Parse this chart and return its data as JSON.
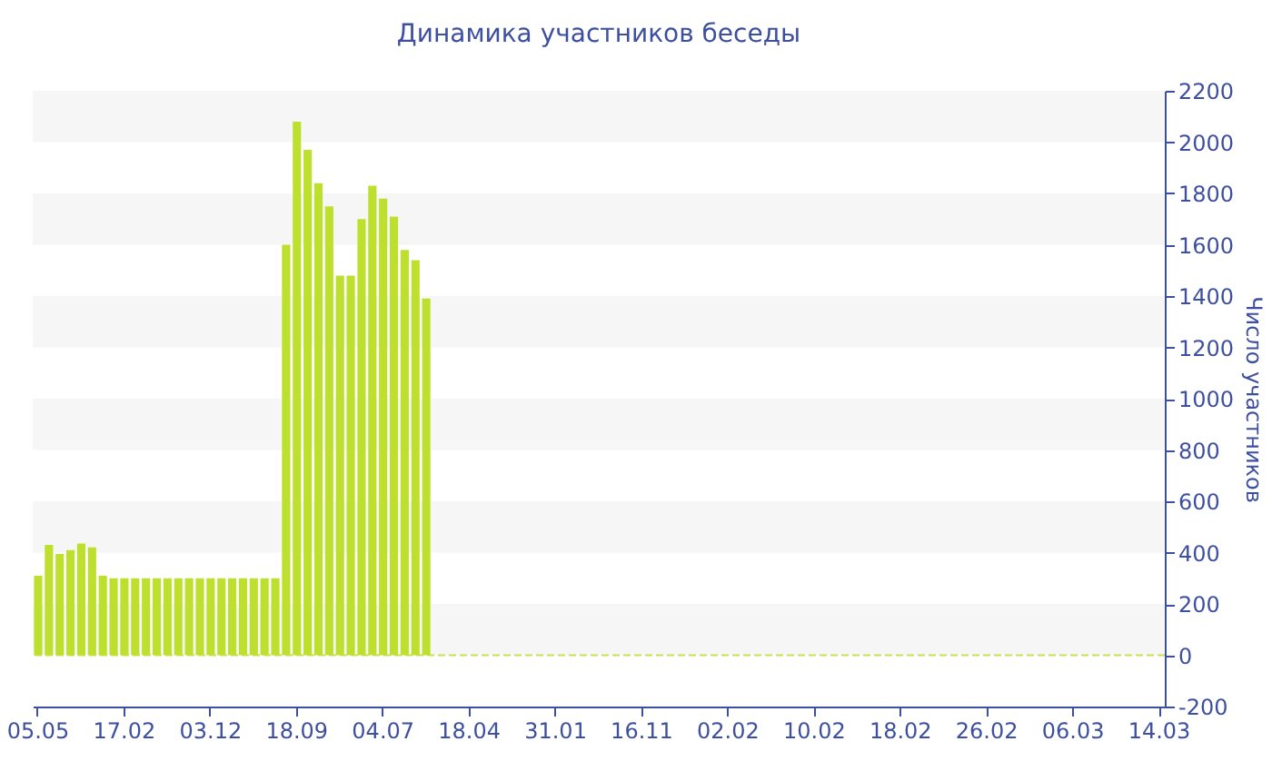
{
  "chart_data": {
    "type": "bar",
    "title": "Динамика участников беседы",
    "ylabel": "Число участников",
    "categories": [
      "05.05",
      null,
      null,
      null,
      null,
      null,
      null,
      null,
      "17.02",
      null,
      null,
      null,
      null,
      null,
      null,
      null,
      "03.12",
      null,
      null,
      null,
      null,
      null,
      null,
      null,
      "18.09",
      null,
      null,
      null,
      null,
      null,
      null,
      null,
      "04.07",
      null,
      null,
      null,
      null,
      null,
      null,
      null,
      "18.04",
      null,
      null,
      null,
      null,
      null,
      null,
      null,
      "31.01",
      null,
      null,
      null,
      null,
      null,
      null,
      null,
      "16.11",
      null,
      null,
      null,
      null,
      null,
      null,
      null,
      "02.02",
      null,
      null,
      null,
      null,
      null,
      null,
      null,
      "10.02",
      null,
      null,
      null,
      null,
      null,
      null,
      null,
      "18.02",
      null,
      null,
      null,
      null,
      null,
      null,
      null,
      "26.02",
      null,
      null,
      null,
      null,
      null,
      null,
      null,
      "06.03",
      null,
      null,
      null,
      null,
      null,
      null,
      null,
      "14.03"
    ],
    "values": [
      310,
      430,
      395,
      410,
      435,
      420,
      310,
      300,
      300,
      300,
      300,
      300,
      300,
      300,
      300,
      300,
      300,
      300,
      300,
      300,
      300,
      300,
      300,
      1600,
      2080,
      1970,
      1840,
      1750,
      1480,
      1480,
      1700,
      1830,
      1780,
      1710,
      1580,
      1540,
      1390,
      null,
      null,
      null,
      null,
      null,
      null,
      null,
      null,
      null,
      null,
      null,
      null,
      null,
      null,
      null,
      null,
      null,
      null,
      null,
      null,
      null,
      null,
      null,
      null,
      null,
      null,
      null,
      null,
      null,
      null,
      null,
      null,
      null,
      null,
      null,
      null,
      null,
      null,
      null,
      null,
      null,
      null,
      null,
      null,
      null,
      null,
      null,
      null,
      null,
      null,
      null,
      null,
      null,
      null,
      null,
      null,
      null,
      null,
      null,
      null,
      null,
      null,
      null,
      null,
      null,
      null,
      null,
      null
    ],
    "color": "#bde02f",
    "ylim": [
      -200,
      2200
    ],
    "yticks": [
      -200,
      0,
      200,
      400,
      600,
      800,
      1000,
      1200,
      1400,
      1600,
      1800,
      2000,
      2200
    ],
    "bands": [
      {
        "axis": "y",
        "from": 0,
        "to": 200,
        "color": "#f6f6f6"
      },
      {
        "axis": "y",
        "from": 400,
        "to": 600,
        "color": "#f6f6f6"
      },
      {
        "axis": "y",
        "from": 800,
        "to": 1000,
        "color": "#f6f6f6"
      },
      {
        "axis": "y",
        "from": 1200,
        "to": 1400,
        "color": "#f6f6f6"
      },
      {
        "axis": "y",
        "from": 1600,
        "to": 1800,
        "color": "#f6f6f6"
      },
      {
        "axis": "y",
        "from": 2000,
        "to": 2200,
        "color": "#f6f6f6"
      }
    ],
    "ref_lines": [
      {
        "axis": "y",
        "value": 0,
        "color": "#c9e254",
        "line_style": "dashed"
      }
    ]
  }
}
